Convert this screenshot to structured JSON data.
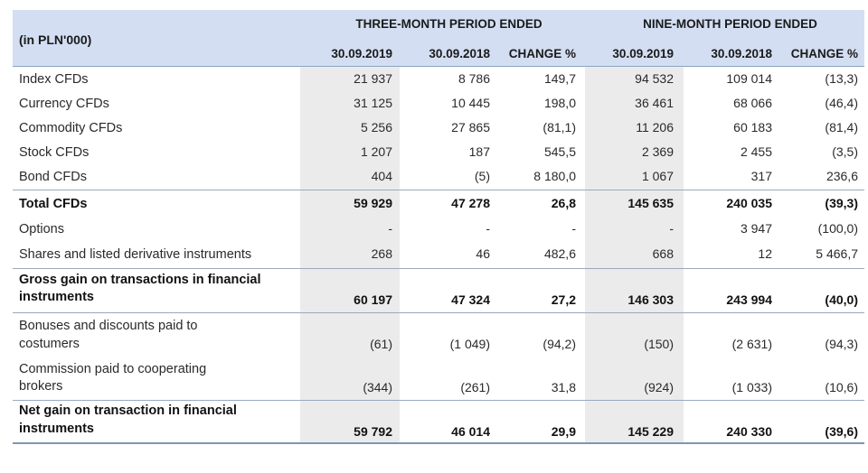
{
  "header": {
    "unit": "(in PLN'000)",
    "group_three": "THREE-MONTH PERIOD ENDED",
    "group_nine": "NINE-MONTH PERIOD ENDED",
    "columns": [
      "30.09.2019",
      "30.09.2018",
      "CHANGE %",
      "30.09.2019",
      "30.09.2018",
      "CHANGE %"
    ]
  },
  "rows": [
    {
      "label": "Index CFDs",
      "values": [
        "21 937",
        "8 786",
        "149,7",
        "94 532",
        "109 014",
        "(13,3)"
      ]
    },
    {
      "label": "Currency CFDs",
      "values": [
        "31 125",
        "10 445",
        "198,0",
        "36 461",
        "68 066",
        "(46,4)"
      ]
    },
    {
      "label": "Commodity CFDs",
      "values": [
        "5 256",
        "27 865",
        "(81,1)",
        "11 206",
        "60 183",
        "(81,4)"
      ]
    },
    {
      "label": "Stock CFDs",
      "values": [
        "1 207",
        "187",
        "545,5",
        "2 369",
        "2 455",
        "(3,5)"
      ]
    },
    {
      "label": "Bond CFDs",
      "values": [
        "404",
        "(5)",
        "8 180,0",
        "1 067",
        "317",
        "236,6"
      ]
    },
    {
      "label": "Total CFDs",
      "values": [
        "59 929",
        "47 278",
        "26,8",
        "145 635",
        "240 035",
        "(39,3)"
      ]
    },
    {
      "label": "Options",
      "values": [
        "-",
        "-",
        "-",
        "-",
        "3 947",
        "(100,0)"
      ]
    },
    {
      "label": "Shares and listed derivative instruments",
      "values": [
        "268",
        "46",
        "482,6",
        "668",
        "12",
        "5 466,7"
      ]
    },
    {
      "label_line1": "Gross gain on transactions in financial",
      "label_line2": "instruments",
      "values": [
        "60 197",
        "47 324",
        "27,2",
        "146 303",
        "243 994",
        "(40,0)"
      ]
    },
    {
      "label_line1": "Bonuses and discounts paid to",
      "label_line2": "costumers",
      "values": [
        "(61)",
        "(1 049)",
        "(94,2)",
        "(150)",
        "(2 631)",
        "(94,3)"
      ]
    },
    {
      "label_line1": "Commission paid to cooperating",
      "label_line2": "brokers",
      "values": [
        "(344)",
        "(261)",
        "31,8",
        "(924)",
        "(1 033)",
        "(10,6)"
      ]
    },
    {
      "label_line1": "Net gain on transaction in financial",
      "label_line2": "instruments",
      "values": [
        "59 792",
        "46 014",
        "29,9",
        "145 229",
        "240 330",
        "(39,6)"
      ]
    }
  ]
}
